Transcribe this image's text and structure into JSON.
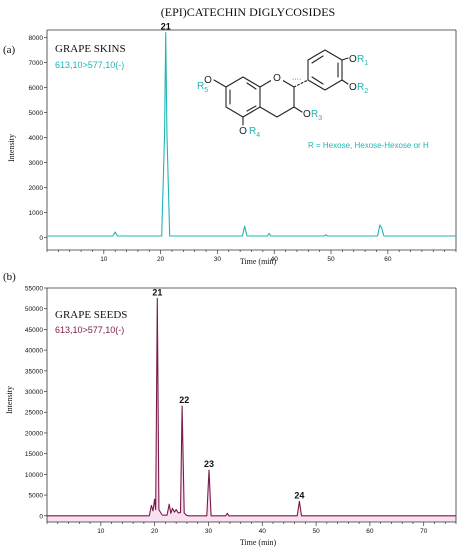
{
  "figure": {
    "title": "(EPI)CATECHIN DIGLYCOSIDES"
  },
  "structure": {
    "labels": {
      "r1": "R",
      "r1sub": "1",
      "r2": "R",
      "r2sub": "2",
      "r3": "R",
      "r3sub": "3",
      "r4": "R",
      "r4sub": "4",
      "r5": "R",
      "r5sub": "5",
      "o": "O",
      "stereo": "····"
    },
    "note": "R = Hexose, Hexose-Hexose or H"
  },
  "chart_data": [
    {
      "type": "line",
      "panel_label": "(a)",
      "title": "GRAPE SKINS",
      "subtitle": "613,10>577,10(-)",
      "xlabel": "Time (min)",
      "ylabel": "Intensity",
      "xlim": [
        0,
        72
      ],
      "ylim": [
        -500,
        8300
      ],
      "xticks": [
        10,
        20,
        30,
        40,
        50,
        60
      ],
      "yticks": [
        0,
        1000,
        2000,
        3000,
        4000,
        5000,
        6000,
        7000,
        8000
      ],
      "color": "#1fb5b5",
      "grid": false,
      "series": [
        {
          "x": [
            0,
            11.6,
            12.0,
            12.4,
            20.2,
            20.7,
            20.9,
            21.1,
            21.6,
            34.4,
            34.8,
            35.2,
            38.8,
            39.1,
            39.4,
            48.8,
            49.1,
            49.4,
            58.2,
            58.6,
            58.9,
            59.3,
            72
          ],
          "y": [
            60,
            60,
            220,
            60,
            60,
            4200,
            8200,
            4200,
            60,
            60,
            450,
            60,
            60,
            170,
            60,
            60,
            110,
            60,
            60,
            500,
            380,
            60,
            60
          ]
        }
      ],
      "annotations": [
        {
          "x": 20.9,
          "y": 8200,
          "text": "21"
        }
      ]
    },
    {
      "type": "line",
      "panel_label": "(b)",
      "title": "GRAPE SEEDS",
      "subtitle": "613,10>577,10(-)",
      "xlabel": "Time (min)",
      "ylabel": "Intensity",
      "xlim": [
        0,
        76
      ],
      "ylim": [
        -1500,
        55000
      ],
      "xticks": [
        10,
        20,
        30,
        40,
        50,
        60,
        70
      ],
      "yticks": [
        0,
        5000,
        10000,
        15000,
        20000,
        25000,
        30000,
        35000,
        40000,
        45000,
        50000,
        55000
      ],
      "color": "#7a1a48",
      "shading_color": "#f7ddef",
      "grid": false,
      "series": [
        {
          "x": [
            0,
            19.0,
            19.4,
            19.7,
            20.0,
            20.2,
            20.5,
            20.8,
            21.1,
            21.4,
            21.8,
            22.3,
            22.7,
            23.0,
            23.3,
            23.7,
            24.0,
            24.4,
            24.8,
            25.1,
            25.5,
            25.9,
            26.3,
            29.7,
            30.1,
            30.5,
            33.2,
            33.5,
            33.8,
            46.5,
            46.9,
            47.3,
            76
          ],
          "y": [
            0,
            0,
            2500,
            1200,
            4000,
            1500,
            52500,
            1500,
            800,
            200,
            150,
            150,
            2800,
            600,
            1800,
            900,
            1500,
            700,
            800,
            26500,
            700,
            150,
            0,
            0,
            11000,
            0,
            0,
            600,
            0,
            0,
            3500,
            0,
            0
          ]
        }
      ],
      "annotations": [
        {
          "x": 20.5,
          "y": 52500,
          "text": "21"
        },
        {
          "x": 25.5,
          "y": 26500,
          "text": "22"
        },
        {
          "x": 30.1,
          "y": 11000,
          "text": "23"
        },
        {
          "x": 46.9,
          "y": 3500,
          "text": "24"
        }
      ]
    }
  ]
}
